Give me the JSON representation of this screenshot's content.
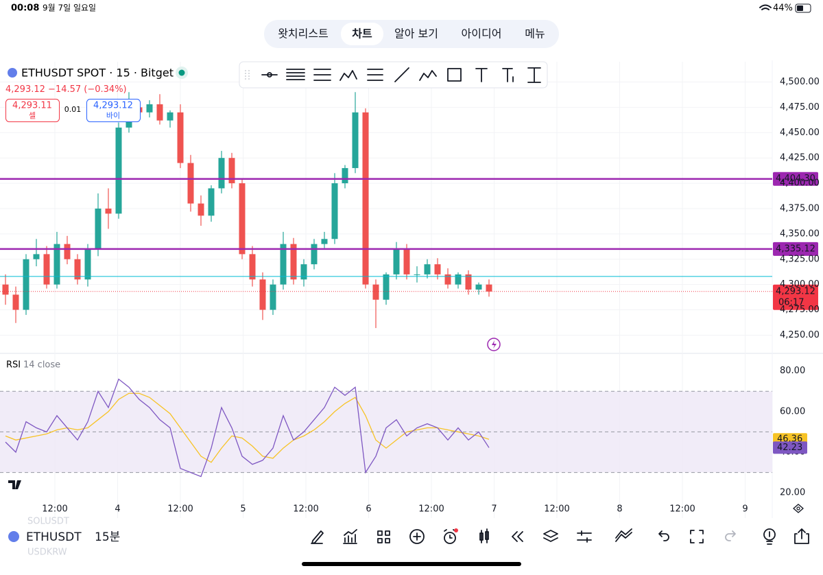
{
  "status_bar": {
    "time": "00:08",
    "date": "9월 7일 일요일",
    "battery": "44%"
  },
  "nav": {
    "tabs": [
      "왓치리스트",
      "차트",
      "알아 보기",
      "아이디어",
      "메뉴"
    ],
    "active": 1
  },
  "header": {
    "symbol": "ETHUSDT SPOT · 15 · Bitget",
    "last": "4,293.12",
    "change": "−14.57",
    "change_pct": "(−0.34%)",
    "sell_price": "4,293.11",
    "sell_label": "셀",
    "spread": "0.01",
    "buy_price": "4,293.12",
    "buy_label": "바이"
  },
  "chart_data": {
    "type": "candlestick",
    "ylim": [
      4232,
      4520
    ],
    "yticks": [
      {
        "value": 4250,
        "label": "4,250.00"
      },
      {
        "value": 4275,
        "label": "4,275.00"
      },
      {
        "value": 4300,
        "label": "4,300.00"
      },
      {
        "value": 4325,
        "label": "4,325.00"
      },
      {
        "value": 4350,
        "label": "4,350.00"
      },
      {
        "value": 4375,
        "label": "4,375.00"
      },
      {
        "value": 4400,
        "label": "4,400.00"
      },
      {
        "value": 4425,
        "label": "4,425.00"
      },
      {
        "value": 4450,
        "label": "4,450.00"
      },
      {
        "value": 4475,
        "label": "4,475.00"
      },
      {
        "value": 4500,
        "label": "4,500.00"
      }
    ],
    "grid": true,
    "xticks": [
      "12:00",
      "4",
      "12:00",
      "5",
      "12:00",
      "6",
      "12:00",
      "7",
      "12:00",
      "8",
      "12:00",
      "9"
    ],
    "up_color": "#26a69a",
    "down_color": "#ef5350",
    "candles": {
      "open": [
        4300,
        4290,
        4275,
        4325,
        4330,
        4300,
        4340,
        4325,
        4305,
        4335,
        4375,
        4370,
        4455,
        4475,
        4470,
        4478,
        4462,
        4470,
        4420,
        4380,
        4368,
        4395,
        4425,
        4400,
        4330,
        4305,
        4275,
        4300,
        4340,
        4305,
        4320,
        4340,
        4345,
        4400,
        4415,
        4470,
        4300,
        4285,
        4310,
        4335,
        4310,
        4310,
        4320,
        4310,
        4300,
        4310,
        4295,
        4300
      ],
      "high": [
        4310,
        4298,
        4330,
        4345,
        4338,
        4352,
        4348,
        4330,
        4340,
        4390,
        4395,
        4460,
        4490,
        4482,
        4482,
        4488,
        4472,
        4478,
        4428,
        4388,
        4398,
        4432,
        4430,
        4405,
        4338,
        4312,
        4305,
        4352,
        4346,
        4325,
        4345,
        4352,
        4410,
        4418,
        4490,
        4474,
        4305,
        4312,
        4342,
        4340,
        4318,
        4325,
        4326,
        4316,
        4312,
        4314,
        4302,
        4305
      ],
      "low": [
        4280,
        4262,
        4270,
        4318,
        4296,
        4296,
        4320,
        4300,
        4298,
        4328,
        4355,
        4365,
        4450,
        4462,
        4465,
        4458,
        4455,
        4415,
        4372,
        4358,
        4362,
        4390,
        4395,
        4325,
        4298,
        4265,
        4270,
        4295,
        4300,
        4298,
        4315,
        4336,
        4340,
        4395,
        4410,
        4296,
        4257,
        4280,
        4305,
        4305,
        4302,
        4306,
        4305,
        4296,
        4296,
        4290,
        4290,
        4288
      ],
      "close": [
        4290,
        4275,
        4325,
        4330,
        4300,
        4340,
        4325,
        4305,
        4335,
        4375,
        4370,
        4455,
        4475,
        4470,
        4478,
        4462,
        4470,
        4420,
        4380,
        4368,
        4395,
        4425,
        4400,
        4330,
        4305,
        4275,
        4300,
        4340,
        4305,
        4320,
        4340,
        4345,
        4400,
        4415,
        4470,
        4300,
        4285,
        4310,
        4335,
        4310,
        4310,
        4320,
        4310,
        4300,
        4310,
        4295,
        4300,
        4293.12
      ]
    },
    "hlines": [
      {
        "value": 4404.3,
        "label": "4,404.30",
        "color": "#9c27b0"
      },
      {
        "value": 4335.12,
        "label": "4,335.12",
        "color": "#9c27b0"
      },
      {
        "value": 4308,
        "color": "#00bcd4"
      }
    ],
    "last_price": {
      "value": 4293.12,
      "label": "4,293.12",
      "countdown": "06:17",
      "color": "#f23645"
    },
    "rsi": {
      "title": "RSI",
      "params": "14 close",
      "ylim": [
        16,
        87
      ],
      "yticks": [
        {
          "value": 20,
          "label": "20.00"
        },
        {
          "value": 40,
          "label": "40.00"
        },
        {
          "value": 60,
          "label": "60.00"
        },
        {
          "value": 80,
          "label": "80.00"
        }
      ],
      "bands": [
        70,
        50,
        30
      ],
      "color": "#7e57c2",
      "ma_color": "#f7c325",
      "band_fill": "#ede7f6",
      "values": [
        45,
        40,
        55,
        52,
        50,
        58,
        52,
        46,
        55,
        70,
        62,
        76,
        72,
        66,
        62,
        56,
        52,
        32,
        30,
        28,
        42,
        62,
        52,
        38,
        34,
        36,
        42,
        58,
        46,
        50,
        56,
        62,
        72,
        68,
        72,
        30,
        38,
        52,
        56,
        48,
        52,
        54,
        52,
        46,
        52,
        46,
        50,
        42.23
      ],
      "ma": [
        48,
        46,
        47,
        48,
        49,
        51,
        52,
        51,
        52,
        56,
        60,
        66,
        69,
        69,
        67,
        63,
        59,
        52,
        45,
        38,
        35,
        42,
        48,
        47,
        43,
        38,
        37,
        42,
        46,
        48,
        51,
        55,
        60,
        64,
        67,
        58,
        46,
        42,
        46,
        50,
        51,
        52,
        52,
        51,
        50,
        49,
        48,
        46.36
      ]
    }
  },
  "bottom_bar": {
    "symbol": "ETHUSDT",
    "interval": "15분",
    "ghost_above": "SOLUSDT",
    "ghost_below": "USDKRW"
  }
}
